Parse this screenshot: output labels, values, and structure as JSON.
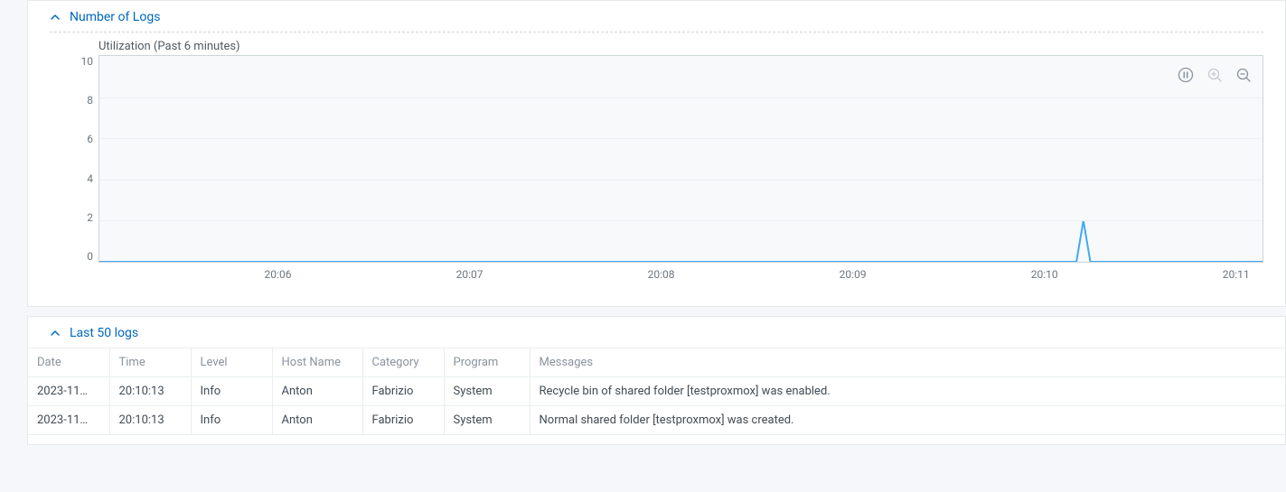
{
  "section1": {
    "title": "Number of Logs",
    "subtitle": "Utilization (Past 6 minutes)",
    "chart": {
      "type": "line",
      "ylim": [
        0,
        10
      ],
      "ytick_step": 2,
      "yticks": [
        10,
        8,
        6,
        4,
        2,
        0
      ],
      "xticks": [
        "20:06",
        "20:07",
        "20:08",
        "20:09",
        "20:10",
        "20:11"
      ],
      "xtick_positions_pct": [
        15.4,
        31.85,
        48.3,
        64.75,
        81.2,
        97.65
      ],
      "background_color": "#f7f9fb",
      "grid_color": "#ecf0f3",
      "border_color": "#ced5da",
      "line_color": "#3fa9f5",
      "line_width": 2,
      "series": {
        "points": [
          {
            "x_pct": 0.0,
            "y": 0
          },
          {
            "x_pct": 84.0,
            "y": 0
          },
          {
            "x_pct": 84.6,
            "y": 2
          },
          {
            "x_pct": 85.2,
            "y": 0
          },
          {
            "x_pct": 100.0,
            "y": 0
          }
        ]
      }
    },
    "toolbar": {
      "pause": "pause",
      "zoom_in": "zoom-in",
      "zoom_out": "zoom-out"
    }
  },
  "section2": {
    "title": "Last 50 logs",
    "columns": [
      "Date",
      "Time",
      "Level",
      "Host Name",
      "Category",
      "Program",
      "Messages"
    ],
    "rows": [
      [
        "2023-11…",
        "20:10:13",
        "Info",
        "Anton",
        "Fabrizio",
        "System",
        "Recycle bin of shared folder [testproxmox] was enabled."
      ],
      [
        "2023-11…",
        "20:10:13",
        "Info",
        "Anton",
        "Fabrizio",
        "System",
        "Normal shared folder [testproxmox] was created."
      ]
    ]
  },
  "colors": {
    "link": "#0068c1",
    "text": "#414b55",
    "muted": "#8a949d",
    "border": "#e5e9ec"
  }
}
